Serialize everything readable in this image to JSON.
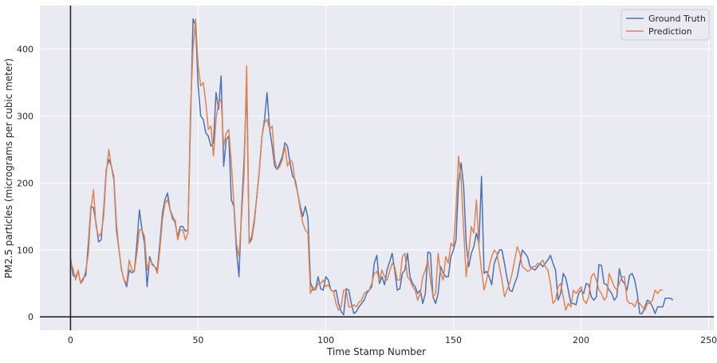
{
  "chart_data": {
    "type": "line",
    "xlabel": "Time Stamp Number",
    "ylabel": "PM2.5 particles (micrograms per cubic meter)",
    "xlim": [
      -12,
      252
    ],
    "ylim": [
      -20,
      465
    ],
    "xticks": [
      0,
      50,
      100,
      150,
      200,
      250
    ],
    "yticks": [
      0,
      100,
      200,
      300,
      400
    ],
    "grid": true,
    "legend_position": "top-right",
    "series": [
      {
        "name": "Ground Truth",
        "color": "#4c72b0",
        "values": [
          88,
          62,
          60,
          68,
          50,
          58,
          62,
          110,
          165,
          163,
          140,
          112,
          115,
          160,
          220,
          235,
          225,
          205,
          130,
          100,
          70,
          55,
          45,
          70,
          66,
          68,
          110,
          160,
          130,
          110,
          45,
          90,
          78,
          75,
          70,
          110,
          155,
          175,
          185,
          160,
          150,
          140,
          120,
          135,
          135,
          128,
          130,
          290,
          445,
          435,
          345,
          300,
          295,
          275,
          270,
          255,
          260,
          335,
          310,
          360,
          225,
          265,
          270,
          175,
          165,
          100,
          60,
          160,
          235,
          350,
          110,
          120,
          145,
          180,
          220,
          270,
          295,
          335,
          280,
          255,
          225,
          220,
          230,
          240,
          260,
          255,
          230,
          210,
          205,
          185,
          165,
          150,
          165,
          148,
          52,
          40,
          42,
          60,
          42,
          40,
          60,
          55,
          40,
          38,
          40,
          20,
          8,
          3,
          42,
          40,
          20,
          5,
          8,
          15,
          20,
          25,
          35,
          40,
          45,
          80,
          92,
          50,
          60,
          48,
          70,
          82,
          95,
          70,
          40,
          42,
          65,
          70,
          95,
          60,
          50,
          45,
          35,
          40,
          20,
          35,
          97,
          95,
          30,
          20,
          35,
          75,
          65,
          60,
          60,
          90,
          100,
          115,
          200,
          230,
          195,
          110,
          75,
          95,
          105,
          125,
          110,
          210,
          65,
          68,
          60,
          48,
          80,
          90,
          100,
          100,
          80,
          58,
          40,
          38,
          50,
          60,
          80,
          100,
          95,
          90,
          75,
          72,
          70,
          75,
          80,
          75,
          80,
          85,
          92,
          80,
          70,
          25,
          35,
          65,
          58,
          40,
          20,
          20,
          18,
          35,
          40,
          35,
          50,
          48,
          30,
          25,
          30,
          78,
          77,
          50,
          48,
          40,
          35,
          25,
          30,
          72,
          55,
          50,
          40,
          62,
          65,
          55,
          35,
          5,
          5,
          15,
          25,
          22,
          15,
          5,
          15,
          15,
          15,
          28,
          28,
          28,
          25
        ]
      },
      {
        "name": "Prediction",
        "color": "#dd8452",
        "values": [
          82,
          72,
          55,
          70,
          50,
          55,
          70,
          95,
          160,
          190,
          135,
          120,
          125,
          150,
          215,
          250,
          225,
          210,
          140,
          100,
          70,
          55,
          50,
          85,
          70,
          68,
          95,
          130,
          130,
          120,
          70,
          85,
          80,
          75,
          65,
          100,
          145,
          170,
          175,
          160,
          145,
          145,
          115,
          130,
          130,
          115,
          125,
          310,
          400,
          445,
          375,
          345,
          350,
          320,
          280,
          285,
          240,
          295,
          320,
          325,
          255,
          275,
          280,
          230,
          170,
          110,
          90,
          150,
          215,
          375,
          110,
          115,
          140,
          180,
          220,
          270,
          290,
          295,
          280,
          285,
          235,
          220,
          225,
          235,
          255,
          225,
          235,
          230,
          200,
          185,
          160,
          140,
          130,
          125,
          35,
          45,
          40,
          50,
          50,
          55,
          45,
          48,
          40,
          38,
          20,
          10,
          15,
          40,
          40,
          15,
          15,
          18,
          15,
          22,
          25,
          35,
          38,
          40,
          50,
          65,
          68,
          55,
          70,
          60,
          55,
          68,
          80,
          75,
          55,
          55,
          90,
          95,
          60,
          55,
          45,
          40,
          25,
          35,
          60,
          70,
          85,
          55,
          30,
          35,
          95,
          65,
          55,
          90,
          80,
          110,
          105,
          160,
          240,
          205,
          130,
          60,
          95,
          135,
          125,
          175,
          105,
          70,
          40,
          55,
          75,
          90,
          100,
          95,
          75,
          55,
          30,
          40,
          50,
          65,
          85,
          105,
          95,
          75,
          72,
          68,
          70,
          75,
          75,
          80,
          80,
          85,
          75,
          70,
          50,
          20,
          25,
          45,
          50,
          30,
          10,
          20,
          15,
          40,
          35,
          40,
          45,
          25,
          20,
          30,
          60,
          65,
          55,
          40,
          35,
          25,
          30,
          65,
          55,
          45,
          40,
          50,
          60,
          60,
          25,
          20,
          20,
          15,
          25,
          20,
          15,
          10,
          20,
          20,
          25,
          40,
          35,
          40,
          40
        ]
      }
    ]
  }
}
